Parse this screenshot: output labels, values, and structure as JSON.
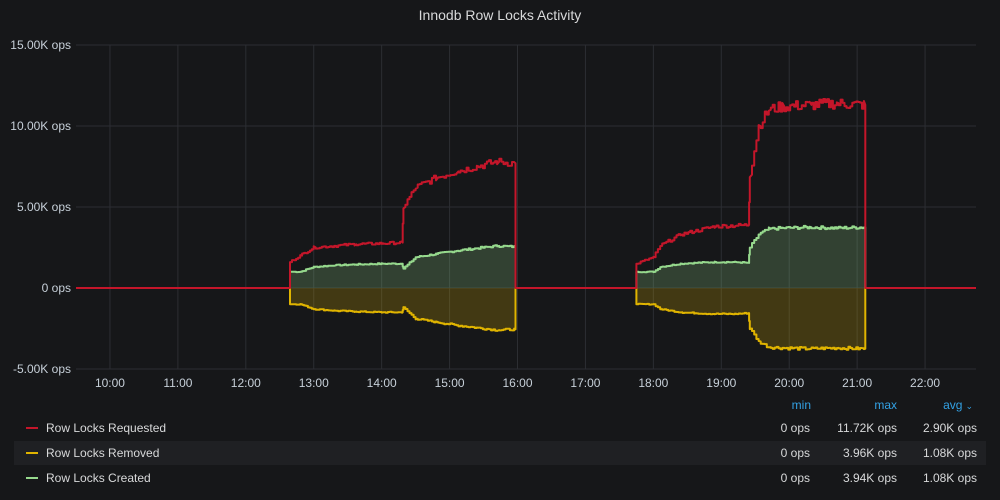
{
  "panel": {
    "title": "Innodb Row Locks Activity"
  },
  "legend": {
    "headers": {
      "min": "min",
      "max": "max",
      "avg": "avg"
    },
    "rows": [
      {
        "name": "Row Locks Requested",
        "min": "0 ops",
        "max": "11.72K ops",
        "avg": "2.90K ops",
        "color": "#c4162a"
      },
      {
        "name": "Row Locks Removed",
        "min": "0 ops",
        "max": "3.96K ops",
        "avg": "1.08K ops",
        "color": "#e0b400"
      },
      {
        "name": "Row Locks Created",
        "min": "0 ops",
        "max": "3.94K ops",
        "avg": "1.08K ops",
        "color": "#96d98d"
      }
    ]
  },
  "chart_data": {
    "type": "line",
    "title": "Innodb Row Locks Activity",
    "ylim": [
      -5000,
      15000
    ],
    "y_ticks": [
      15000,
      10000,
      5000,
      0,
      -5000
    ],
    "y_tick_labels": [
      "15.00K ops",
      "10.00K ops",
      "5.00K ops",
      "0 ops",
      "-5.00K ops"
    ],
    "x_ticks": [
      "10:00",
      "11:00",
      "12:00",
      "13:00",
      "14:00",
      "15:00",
      "16:00",
      "17:00",
      "18:00",
      "19:00",
      "20:00",
      "21:00",
      "22:00"
    ],
    "xlim": [
      9.5,
      22.75
    ],
    "grid": true,
    "legend_position": "bottom",
    "series": [
      {
        "name": "Row Locks Requested",
        "color": "#c4162a",
        "points": [
          [
            9.5,
            0
          ],
          [
            12.64,
            0
          ],
          [
            12.65,
            1600
          ],
          [
            12.8,
            2000
          ],
          [
            13.0,
            2500
          ],
          [
            13.3,
            2600
          ],
          [
            13.6,
            2700
          ],
          [
            14.0,
            2750
          ],
          [
            14.3,
            2800
          ],
          [
            14.32,
            5000
          ],
          [
            14.5,
            6200
          ],
          [
            14.8,
            6800
          ],
          [
            15.1,
            7200
          ],
          [
            15.4,
            7500
          ],
          [
            15.7,
            7800
          ],
          [
            15.95,
            7700
          ],
          [
            15.97,
            0
          ],
          [
            17.74,
            0
          ],
          [
            17.75,
            1500
          ],
          [
            18.0,
            1900
          ],
          [
            18.1,
            2600
          ],
          [
            18.4,
            3300
          ],
          [
            18.6,
            3500
          ],
          [
            18.9,
            3800
          ],
          [
            19.2,
            3850
          ],
          [
            19.4,
            3900
          ],
          [
            19.42,
            7000
          ],
          [
            19.55,
            10000
          ],
          [
            19.7,
            11000
          ],
          [
            19.9,
            11200
          ],
          [
            20.3,
            11300
          ],
          [
            20.7,
            11400
          ],
          [
            21.1,
            11300
          ],
          [
            21.12,
            0
          ],
          [
            22.75,
            0
          ]
        ]
      },
      {
        "name": "Row Locks Removed",
        "color": "#e0b400",
        "points": [
          [
            9.5,
            0
          ],
          [
            12.64,
            0
          ],
          [
            12.65,
            -1000
          ],
          [
            12.8,
            -1000
          ],
          [
            13.0,
            -1300
          ],
          [
            13.3,
            -1400
          ],
          [
            13.6,
            -1450
          ],
          [
            14.0,
            -1500
          ],
          [
            14.3,
            -1500
          ],
          [
            14.32,
            -1200
          ],
          [
            14.5,
            -1900
          ],
          [
            14.8,
            -2100
          ],
          [
            15.1,
            -2300
          ],
          [
            15.4,
            -2450
          ],
          [
            15.7,
            -2600
          ],
          [
            15.95,
            -2550
          ],
          [
            15.97,
            0
          ],
          [
            17.74,
            0
          ],
          [
            17.75,
            -1000
          ],
          [
            18.0,
            -1000
          ],
          [
            18.1,
            -1300
          ],
          [
            18.4,
            -1500
          ],
          [
            18.6,
            -1550
          ],
          [
            18.9,
            -1600
          ],
          [
            19.2,
            -1600
          ],
          [
            19.4,
            -1550
          ],
          [
            19.42,
            -2500
          ],
          [
            19.55,
            -3300
          ],
          [
            19.7,
            -3650
          ],
          [
            19.9,
            -3700
          ],
          [
            20.3,
            -3750
          ],
          [
            20.7,
            -3700
          ],
          [
            21.1,
            -3750
          ],
          [
            21.12,
            0
          ],
          [
            22.75,
            0
          ]
        ]
      },
      {
        "name": "Row Locks Created",
        "color": "#96d98d",
        "points": [
          [
            9.5,
            0
          ],
          [
            12.64,
            0
          ],
          [
            12.65,
            1000
          ],
          [
            12.8,
            1000
          ],
          [
            13.0,
            1300
          ],
          [
            13.3,
            1400
          ],
          [
            13.6,
            1450
          ],
          [
            14.0,
            1500
          ],
          [
            14.3,
            1500
          ],
          [
            14.32,
            1200
          ],
          [
            14.5,
            1900
          ],
          [
            14.8,
            2100
          ],
          [
            15.1,
            2300
          ],
          [
            15.4,
            2450
          ],
          [
            15.7,
            2600
          ],
          [
            15.95,
            2550
          ],
          [
            15.97,
            0
          ],
          [
            17.74,
            0
          ],
          [
            17.75,
            1000
          ],
          [
            18.0,
            1000
          ],
          [
            18.1,
            1300
          ],
          [
            18.4,
            1500
          ],
          [
            18.6,
            1550
          ],
          [
            18.9,
            1600
          ],
          [
            19.2,
            1600
          ],
          [
            19.4,
            1550
          ],
          [
            19.42,
            2500
          ],
          [
            19.55,
            3300
          ],
          [
            19.7,
            3650
          ],
          [
            19.9,
            3700
          ],
          [
            20.3,
            3750
          ],
          [
            20.7,
            3700
          ],
          [
            21.1,
            3750
          ],
          [
            21.12,
            0
          ],
          [
            22.75,
            0
          ]
        ]
      }
    ]
  }
}
